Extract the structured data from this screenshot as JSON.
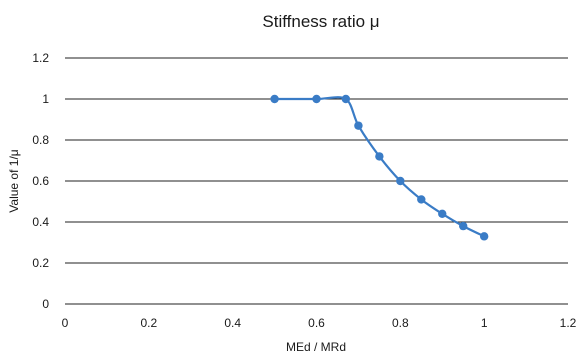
{
  "chart_data": {
    "type": "line",
    "title": "Stiffness ratio μ",
    "xlabel": "MEd / MRd",
    "ylabel": "Value of 1/μ",
    "xlim": [
      0,
      1.2
    ],
    "ylim": [
      0,
      1.2
    ],
    "x_ticks": [
      "0",
      "0.2",
      "0.4",
      "0.6",
      "0.8",
      "1",
      "1.2"
    ],
    "y_ticks": [
      "0",
      "0.2",
      "0.4",
      "0.6",
      "0.8",
      "1",
      "1.2"
    ],
    "grid": "horizontal",
    "legend": "none",
    "series": [
      {
        "x": [
          0.5,
          0.6,
          0.67,
          0.7,
          0.75,
          0.8,
          0.85,
          0.9,
          0.95,
          1.0
        ],
        "y": [
          1.0,
          1.0,
          1.0,
          0.87,
          0.72,
          0.6,
          0.51,
          0.44,
          0.38,
          0.33
        ],
        "color": "#3a7cc6"
      }
    ]
  }
}
